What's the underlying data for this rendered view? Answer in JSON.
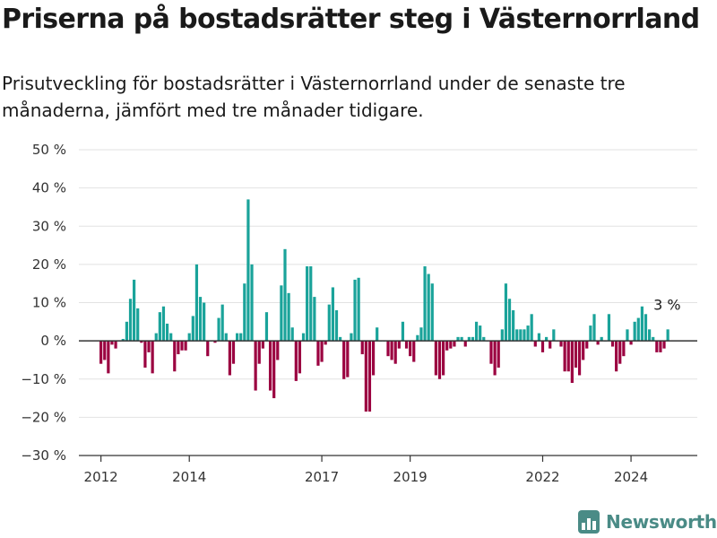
{
  "header": {
    "title": "Priserna på bostadsrätter steg i Västernorrland",
    "subtitle": "Prisutveckling för bostadsrätter i Västernorrland under de senaste tre månaderna, jämfört med tre månader tidigare."
  },
  "brand": {
    "name": "Newsworthy"
  },
  "colors": {
    "positive": "#1aa39a",
    "negative": "#9b0040",
    "grid": "#e2e2e2",
    "axis": "#333333",
    "brand": "#4a8b86"
  },
  "chart_data": {
    "type": "bar",
    "title": "",
    "xlabel": "",
    "ylabel": "",
    "ylim": [
      -30,
      50
    ],
    "yticks": [
      50,
      40,
      30,
      20,
      10,
      0,
      -10,
      -20,
      -30
    ],
    "ytick_labels": [
      "50 %",
      "40 %",
      "30 %",
      "20 %",
      "10 %",
      "0 %",
      "−10 %",
      "−20 %",
      "−30 %"
    ],
    "xlim": [
      2011.5,
      2025.5
    ],
    "xticks": [
      2012,
      2014,
      2017,
      2019,
      2022,
      2024
    ],
    "xtick_labels": [
      "2012",
      "2014",
      "2017",
      "2019",
      "2022",
      "2024"
    ],
    "grid": true,
    "bar_unit": "month",
    "start": "2012-01",
    "values": [
      -6,
      -5,
      -8.5,
      -1,
      -2,
      0,
      0.5,
      5,
      11,
      16,
      8.5,
      -0.5,
      -7,
      -3,
      -8.5,
      2,
      7.5,
      9,
      4.5,
      2,
      -8,
      -3.5,
      -2.5,
      -2.5,
      2,
      6.5,
      20,
      11.5,
      10,
      -4,
      0,
      -0.5,
      6,
      9.5,
      2,
      -9,
      -6,
      2,
      2,
      15,
      37,
      20,
      -13,
      -6,
      -2,
      7.5,
      -13,
      -15,
      -5,
      14.5,
      24,
      12.5,
      3.5,
      -10.5,
      -8.5,
      2,
      19.5,
      19.5,
      11.5,
      -6.5,
      -5.5,
      -1,
      9.5,
      14,
      8,
      1,
      -10,
      -9.5,
      2,
      16,
      16.5,
      -3.5,
      -18.5,
      -18.5,
      -9,
      3.5,
      0,
      0,
      -4,
      -5,
      -6,
      -2,
      5,
      -2,
      -4,
      -5.5,
      1.5,
      3.5,
      19.5,
      17.5,
      15,
      -9,
      -10,
      -9,
      -2.5,
      -2,
      -1.5,
      1,
      1,
      -1.5,
      1,
      1,
      5,
      4,
      1,
      0,
      -6,
      -9,
      -7,
      3,
      15,
      11,
      8,
      3,
      3,
      3,
      4,
      7,
      -1.5,
      2,
      -3,
      1,
      -2,
      3,
      0,
      -1.5,
      -8,
      -8,
      -11,
      -7,
      -9,
      -5,
      -2,
      4,
      7,
      -1,
      1,
      0,
      7,
      -1.5,
      -8,
      -6,
      -4,
      3,
      -1,
      5,
      6,
      9,
      7,
      3,
      1,
      -3,
      -3,
      -2,
      3
    ],
    "annotations": [
      {
        "text": "3 %",
        "x": "2024-11",
        "y": 3
      }
    ]
  }
}
